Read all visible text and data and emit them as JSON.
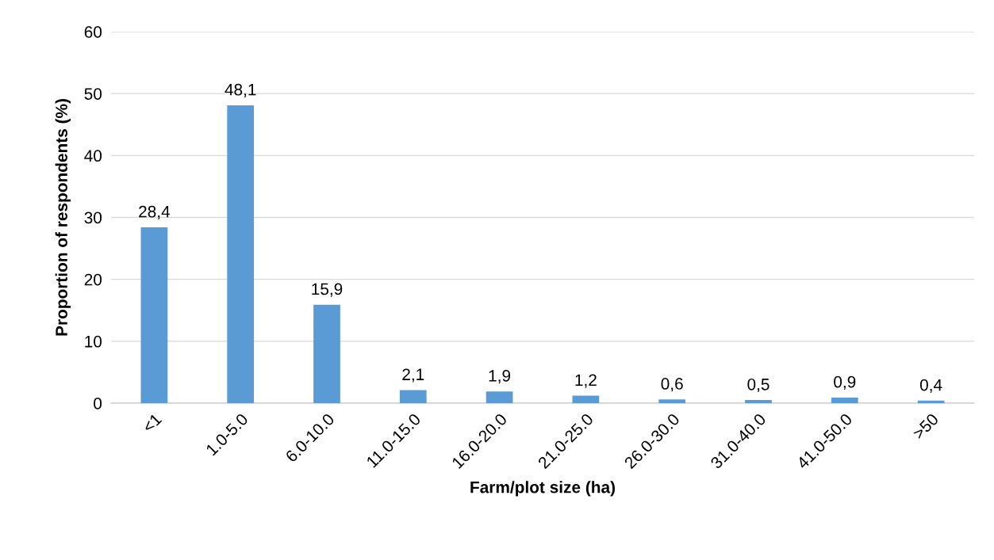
{
  "chart_data": {
    "type": "bar",
    "xlabel": "Farm/plot size (ha)",
    "ylabel": "Proportion of respondents (%)",
    "categories": [
      "<1",
      "1.0-5.0",
      "6.0-10.0",
      "11.0-15.0",
      "16.0-20.0",
      "21.0-25.0",
      "26.0-30.0",
      "31.0-40.0",
      "41.0-50.0",
      ">50"
    ],
    "values": [
      28.4,
      48.1,
      15.9,
      2.1,
      1.9,
      1.2,
      0.6,
      0.5,
      0.9,
      0.4
    ],
    "value_labels": [
      "28,4",
      "48,1",
      "15,9",
      "2,1",
      "1,9",
      "1,2",
      "0,6",
      "0,5",
      "0,9",
      "0,4"
    ],
    "color": "#5b9bd5",
    "ylim": [
      0,
      60
    ],
    "yticks": [
      0,
      10,
      20,
      30,
      40,
      50,
      60
    ],
    "grid": "y"
  }
}
